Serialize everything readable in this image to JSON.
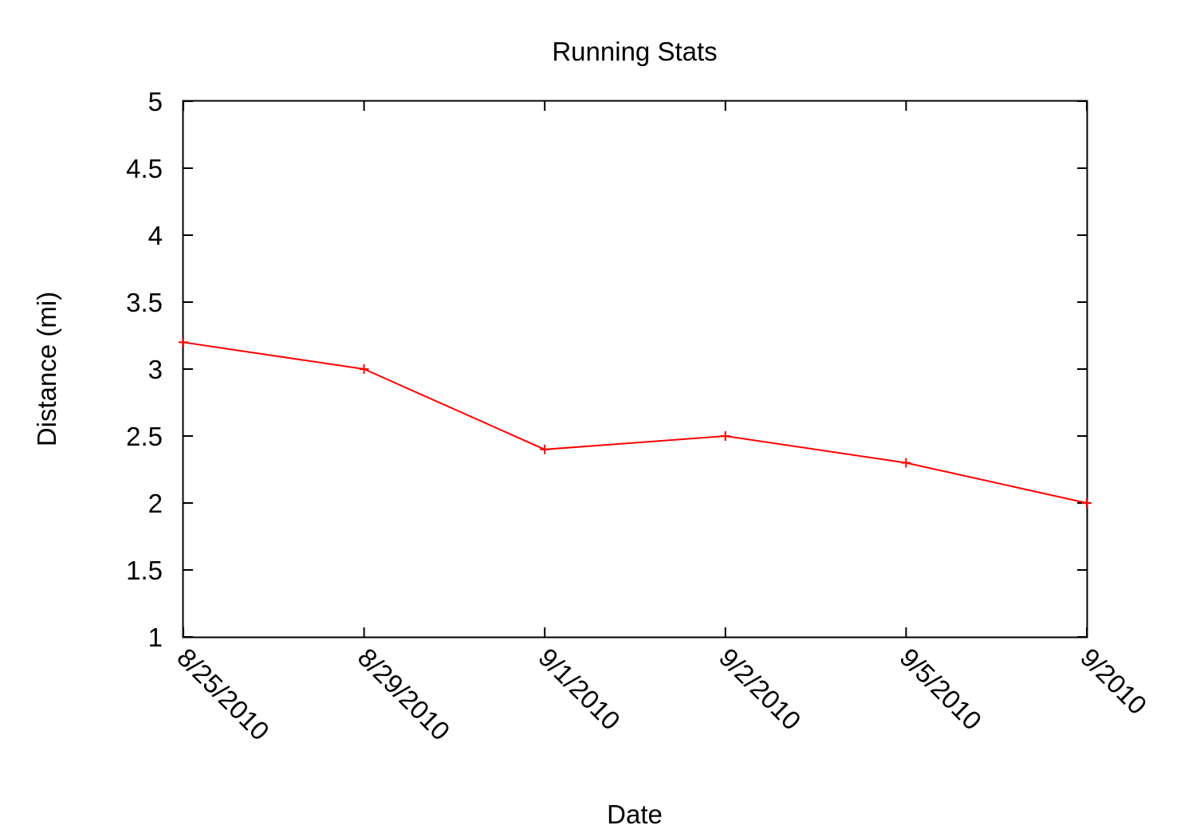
{
  "chart_data": {
    "type": "line",
    "title": "Running Stats",
    "xlabel": "Date",
    "ylabel": "Distance (mi)",
    "categories": [
      "8/25/2010",
      "8/29/2010",
      "9/1/2010",
      "9/2/2010",
      "9/5/2010",
      "9/2010"
    ],
    "series": [
      {
        "values": [
          3.2,
          3.0,
          2.4,
          2.5,
          2.3,
          2.0
        ],
        "color": "#ff0000",
        "marker": "plus"
      }
    ],
    "ylim": [
      1,
      5
    ],
    "yticks": [
      1,
      1.5,
      2,
      2.5,
      3,
      3.5,
      4,
      4.5,
      5
    ],
    "ytick_labels": [
      "1",
      "1.5",
      "2",
      "2.5",
      "3",
      "3.5",
      "4",
      "4.5",
      "5"
    ],
    "grid": false,
    "legend": "none"
  }
}
